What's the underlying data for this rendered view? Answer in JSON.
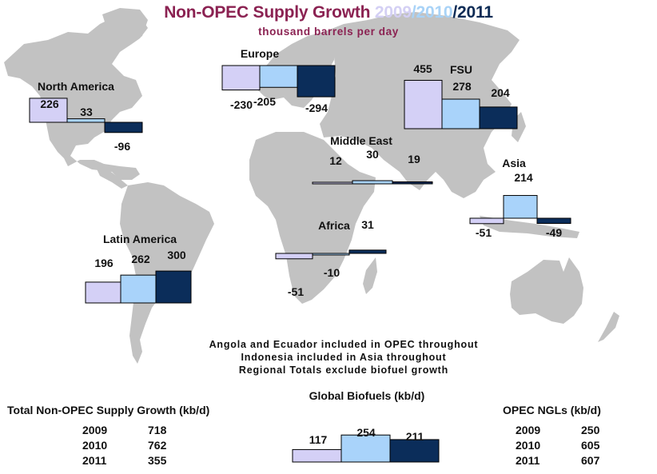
{
  "title": {
    "main": "Non-OPEC Supply Growth ",
    "year_2009": "2009",
    "sep1": "/",
    "year_2010": "2010",
    "sep2": "/",
    "year_2011": "2011",
    "subtitle": "thousand barrels per day"
  },
  "colors": {
    "2009": "#d4d0f6",
    "2010": "#a9d3fa",
    "2011": "#0b2d5a",
    "title": "#8b2252",
    "land": "#c0c0c0"
  },
  "notes": [
    "Angola and Ecuador included in OPEC throughout",
    "Indonesia included in Asia throughout",
    "Regional Totals exclude biofuel growth"
  ],
  "chart_data": {
    "type": "bar",
    "title": "Non-OPEC Supply Growth 2009/2010/2011",
    "subtitle": "thousand barrels per day",
    "series_names": [
      "2009",
      "2010",
      "2011"
    ],
    "regions": [
      {
        "name": "North America",
        "values": [
          226,
          33,
          -96
        ]
      },
      {
        "name": "Europe",
        "values": [
          -230,
          -205,
          -294
        ]
      },
      {
        "name": "FSU",
        "values": [
          455,
          278,
          204
        ]
      },
      {
        "name": "Middle East",
        "values": [
          12,
          30,
          19
        ]
      },
      {
        "name": "Asia",
        "values": [
          -51,
          214,
          -49
        ]
      },
      {
        "name": "Africa",
        "values": [
          -51,
          -10,
          31
        ]
      },
      {
        "name": "Latin America",
        "values": [
          196,
          262,
          300
        ]
      },
      {
        "name": "Global Biofuels (kb/d)",
        "values": [
          117,
          254,
          211
        ]
      }
    ]
  },
  "summary_non_opec": {
    "title": "Total Non-OPEC Supply Growth (kb/d)",
    "rows": [
      {
        "year": "2009",
        "value": "718"
      },
      {
        "year": "2010",
        "value": "762"
      },
      {
        "year": "2011",
        "value": "355"
      }
    ]
  },
  "summary_opec_ngls": {
    "title": "OPEC NGLs (kb/d)",
    "rows": [
      {
        "year": "2009",
        "value": "250"
      },
      {
        "year": "2010",
        "value": "605"
      },
      {
        "year": "2011",
        "value": "607"
      }
    ]
  }
}
